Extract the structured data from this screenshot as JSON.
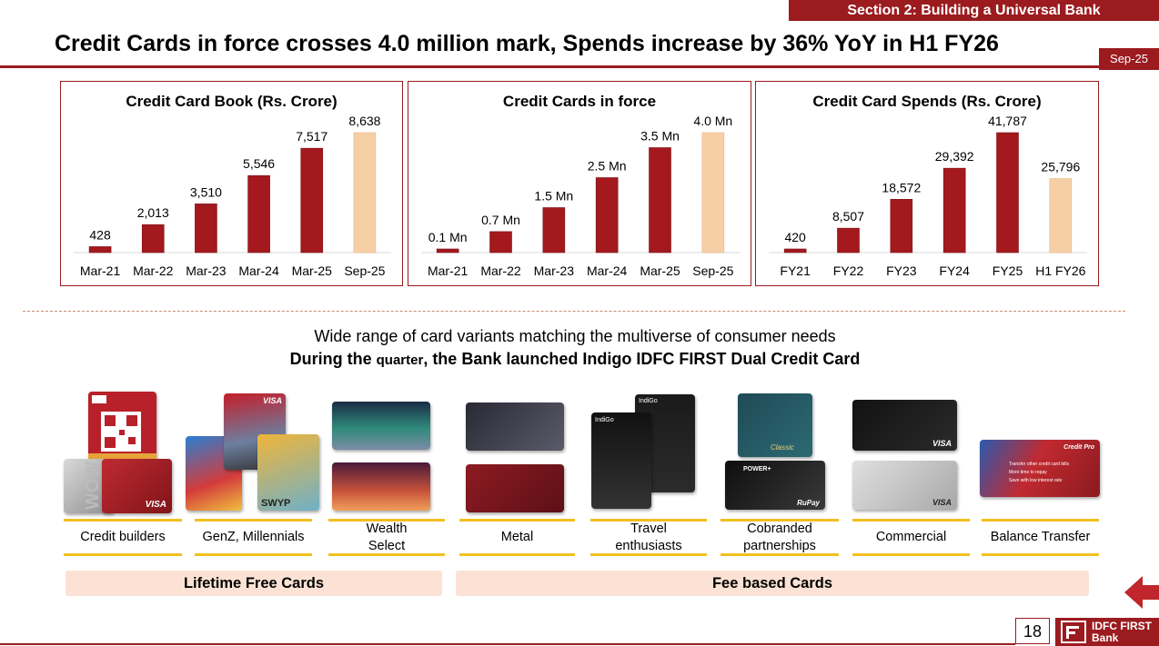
{
  "header": {
    "section": "Section 2: Building a Universal Bank",
    "title": "Credit Cards in force crosses 4.0 million mark, Spends increase by 36% YoY in H1 FY26",
    "date_tag": "Sep-25"
  },
  "chart_data": [
    {
      "type": "bar",
      "title": "Credit Card Book (Rs. Crore)",
      "categories": [
        "Mar-21",
        "Mar-22",
        "Mar-23",
        "Mar-24",
        "Mar-25",
        "Sep-25"
      ],
      "values": [
        428,
        2013,
        3510,
        5546,
        7517,
        8638
      ],
      "labels": [
        "428",
        "2,013",
        "3,510",
        "5,546",
        "7,517",
        "8,638"
      ],
      "highlight_last": true,
      "ylim": [
        0,
        8638
      ]
    },
    {
      "type": "bar",
      "title": "Credit Cards in force",
      "categories": [
        "Mar-21",
        "Mar-22",
        "Mar-23",
        "Mar-24",
        "Mar-25",
        "Sep-25"
      ],
      "values": [
        0.1,
        0.7,
        1.5,
        2.5,
        3.5,
        4.0
      ],
      "labels": [
        "0.1 Mn",
        "0.7 Mn",
        "1.5 Mn",
        "2.5 Mn",
        "3.5 Mn",
        "4.0 Mn"
      ],
      "highlight_last": true,
      "ylim": [
        0,
        4.0
      ]
    },
    {
      "type": "bar",
      "title": "Credit Card Spends (Rs. Crore)",
      "categories": [
        "FY21",
        "FY22",
        "FY23",
        "FY24",
        "FY25",
        "H1 FY26"
      ],
      "values": [
        420,
        8507,
        18572,
        29392,
        41787,
        25796
      ],
      "labels": [
        "420",
        "8,507",
        "18,572",
        "29,392",
        "41,787",
        "25,796"
      ],
      "highlight_last": true,
      "ylim": [
        0,
        41787
      ]
    }
  ],
  "variants": {
    "line1": "Wide range of card variants matching the multiverse of consumer needs",
    "line2_a": "During the ",
    "line2_b": "quarter",
    "line2_c": ", the Bank launched Indigo IDFC FIRST Dual Credit Card"
  },
  "categories": [
    {
      "line1": "Credit builders",
      "line2": ""
    },
    {
      "line1": "GenZ, Millennials",
      "line2": ""
    },
    {
      "line1": "Wealth",
      "line2": "Select"
    },
    {
      "line1": "Metal",
      "line2": ""
    },
    {
      "line1": "Travel",
      "line2": "enthusiasts"
    },
    {
      "line1": "Cobranded",
      "line2": "partnerships"
    },
    {
      "line1": "Commercial",
      "line2": ""
    },
    {
      "line1": "Balance Transfer",
      "line2": ""
    }
  ],
  "bands": {
    "free": "Lifetime Free Cards",
    "fee": "Fee based Cards"
  },
  "card_texts": {
    "visa": "VISA",
    "rupay": "RuPay",
    "indigo": "IndiGo",
    "credit_pro": "Credit Pro",
    "wow": "WOW",
    "swyp": "SWYP",
    "power": "POWER+",
    "classic": "Classic",
    "transfer_text": "Transfer other credit card bills",
    "more_time": "More time to repay",
    "save": "Save with low interest rate"
  },
  "footer": {
    "page": "18",
    "logo_line1": "IDFC FIRST",
    "logo_line2": "Bank"
  },
  "colors": {
    "brand": "#9b1b1f",
    "bar": "#a3191e",
    "bar_highlight": "#f7cfa6",
    "accent_line": "#f2c01f",
    "band": "#fbe2d4"
  }
}
